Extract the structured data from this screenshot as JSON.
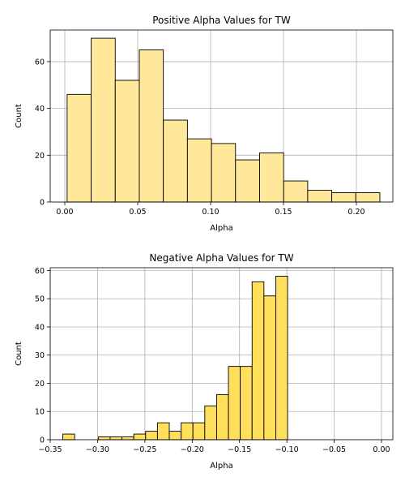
{
  "chart_data": [
    {
      "type": "bar",
      "title": "Positive Alpha Values for TW",
      "xlabel": "Alpha",
      "ylabel": "Count",
      "color": "#FFE89A",
      "grid": true,
      "xlim": [
        -0.01,
        0.225
      ],
      "ylim": [
        0,
        73.5
      ],
      "xticks": [
        0.0,
        0.05,
        0.1,
        0.15,
        0.2
      ],
      "xtick_labels": [
        "0.00",
        "0.05",
        "0.10",
        "0.15",
        "0.20"
      ],
      "yticks": [
        0,
        20,
        40,
        60
      ],
      "ytick_labels": [
        "0",
        "20",
        "40",
        "60"
      ],
      "bins": [
        {
          "x0": 0.0016,
          "x1": 0.0181,
          "count": 46
        },
        {
          "x0": 0.0181,
          "x1": 0.0346,
          "count": 70
        },
        {
          "x0": 0.0346,
          "x1": 0.0511,
          "count": 52
        },
        {
          "x0": 0.0511,
          "x1": 0.0676,
          "count": 65
        },
        {
          "x0": 0.0676,
          "x1": 0.0841,
          "count": 35
        },
        {
          "x0": 0.0841,
          "x1": 0.1006,
          "count": 27
        },
        {
          "x0": 0.1006,
          "x1": 0.1171,
          "count": 25
        },
        {
          "x0": 0.1171,
          "x1": 0.1336,
          "count": 18
        },
        {
          "x0": 0.1336,
          "x1": 0.1501,
          "count": 21
        },
        {
          "x0": 0.1501,
          "x1": 0.1666,
          "count": 9
        },
        {
          "x0": 0.1666,
          "x1": 0.1831,
          "count": 5
        },
        {
          "x0": 0.1831,
          "x1": 0.1996,
          "count": 4
        },
        {
          "x0": 0.1996,
          "x1": 0.2161,
          "count": 4
        }
      ]
    },
    {
      "type": "bar",
      "title": "Negative Alpha Values for TW",
      "xlabel": "Alpha",
      "ylabel": "Count",
      "color": "#FFDF5C",
      "grid": true,
      "xlim": [
        -0.35,
        0.012
      ],
      "ylim": [
        0,
        61
      ],
      "xticks": [
        -0.35,
        -0.3,
        -0.25,
        -0.2,
        -0.15,
        -0.1,
        -0.05,
        0.0
      ],
      "xtick_labels": [
        "−0.35",
        "−0.30",
        "−0.25",
        "−0.20",
        "−0.15",
        "−0.10",
        "−0.05",
        "0.00"
      ],
      "yticks": [
        0,
        10,
        20,
        30,
        40,
        50,
        60
      ],
      "ytick_labels": [
        "0",
        "10",
        "20",
        "30",
        "40",
        "50",
        "60"
      ],
      "bins": [
        {
          "x0": -0.3367,
          "x1": -0.3242,
          "count": 2
        },
        {
          "x0": -0.3242,
          "x1": -0.3117,
          "count": 0
        },
        {
          "x0": -0.3117,
          "x1": -0.2992,
          "count": 0
        },
        {
          "x0": -0.2992,
          "x1": -0.2867,
          "count": 1
        },
        {
          "x0": -0.2867,
          "x1": -0.2742,
          "count": 1
        },
        {
          "x0": -0.2742,
          "x1": -0.2617,
          "count": 1
        },
        {
          "x0": -0.2617,
          "x1": -0.2492,
          "count": 2
        },
        {
          "x0": -0.2492,
          "x1": -0.2367,
          "count": 3
        },
        {
          "x0": -0.2367,
          "x1": -0.2242,
          "count": 6
        },
        {
          "x0": -0.2242,
          "x1": -0.2117,
          "count": 3
        },
        {
          "x0": -0.2117,
          "x1": -0.1992,
          "count": 6
        },
        {
          "x0": -0.1992,
          "x1": -0.1867,
          "count": 6
        },
        {
          "x0": -0.1867,
          "x1": -0.1742,
          "count": 12
        },
        {
          "x0": -0.1742,
          "x1": -0.1617,
          "count": 16
        },
        {
          "x0": -0.1617,
          "x1": -0.1492,
          "count": 26
        },
        {
          "x0": -0.1492,
          "x1": -0.1367,
          "count": 26
        },
        {
          "x0": -0.1367,
          "x1": -0.1242,
          "count": 56
        },
        {
          "x0": -0.1242,
          "x1": -0.1117,
          "count": 51
        },
        {
          "x0": -0.1117,
          "x1": -0.0992,
          "count": 58
        }
      ]
    }
  ]
}
